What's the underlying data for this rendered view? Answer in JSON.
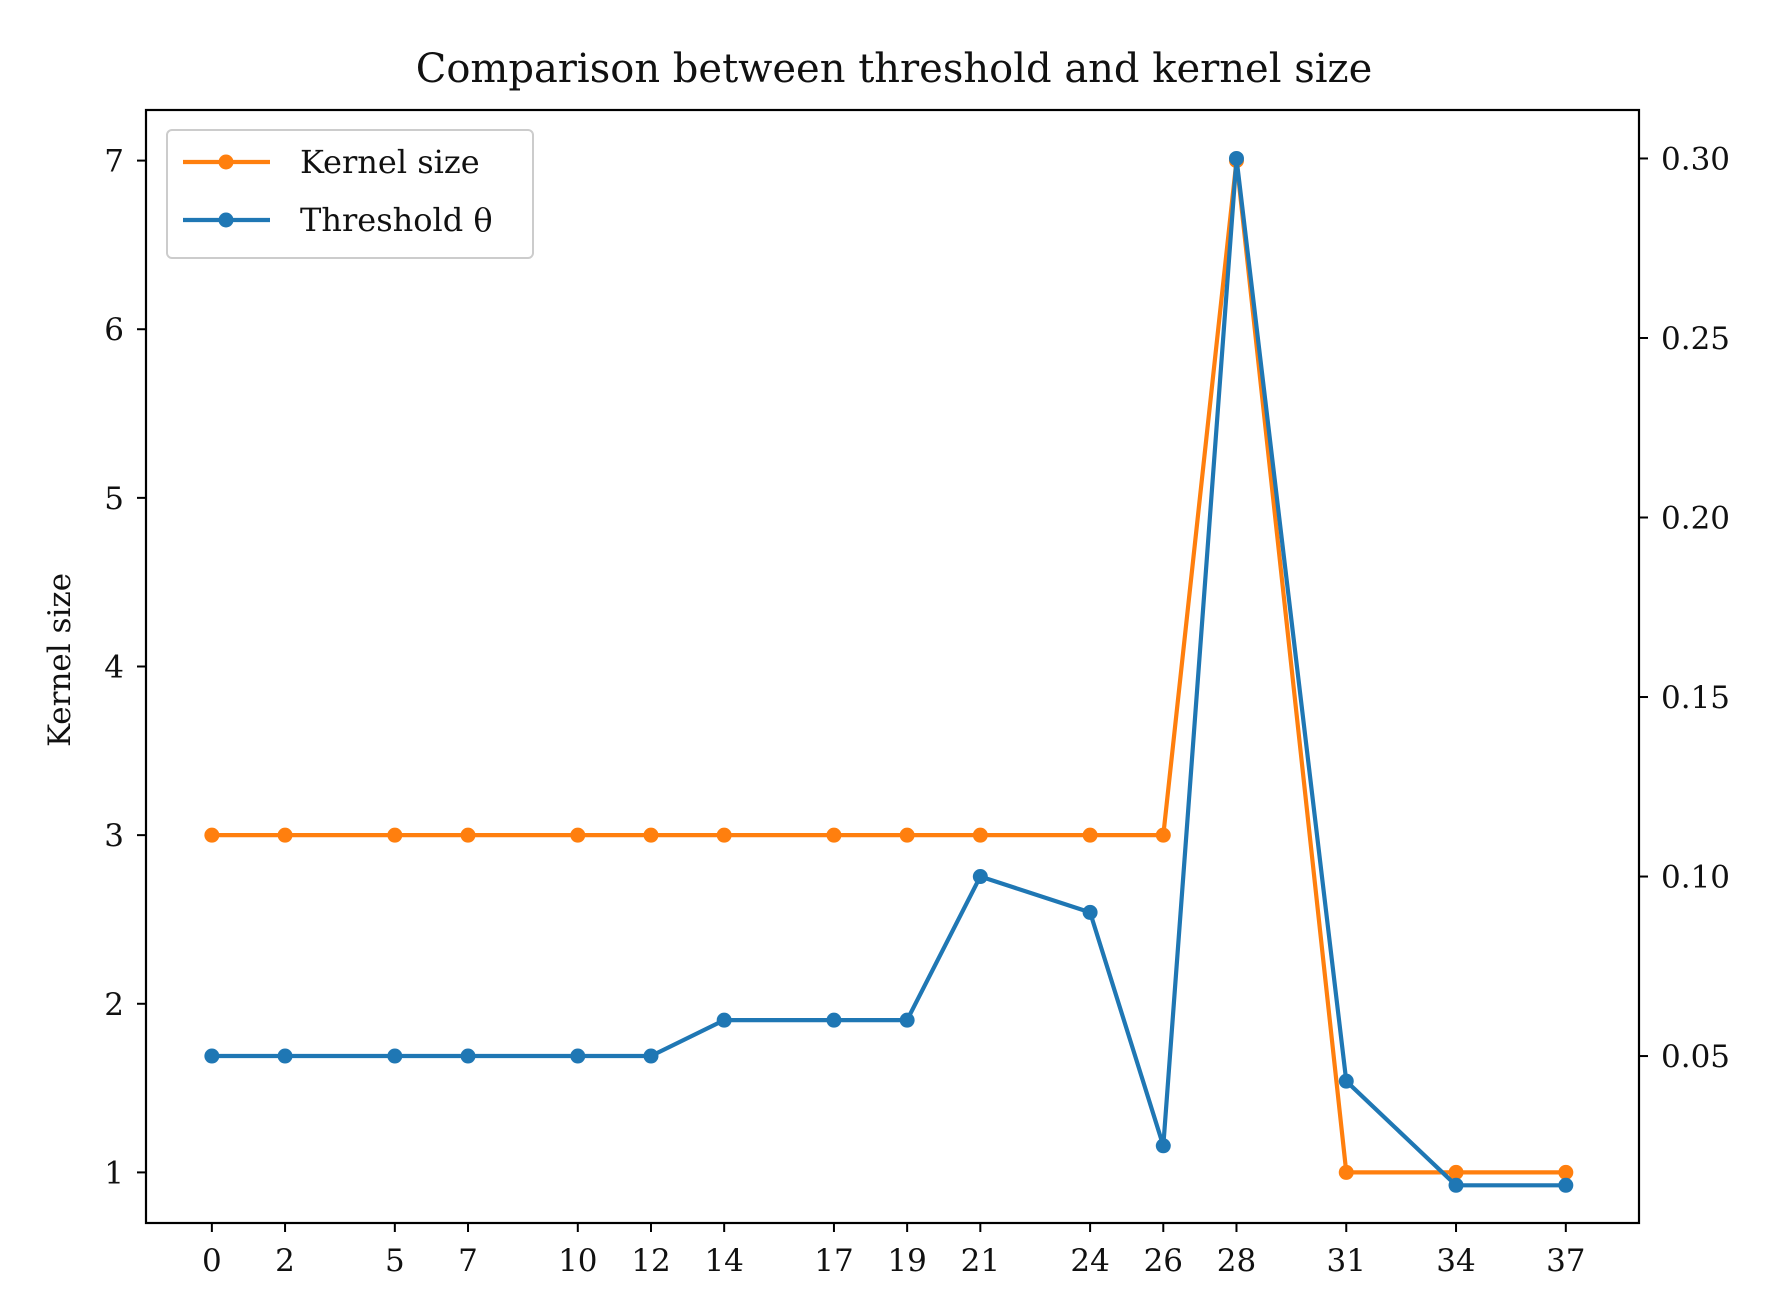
{
  "chart_data": {
    "type": "line",
    "title": "Comparison between threshold and kernel size",
    "xlabel": "",
    "ylabel": "Kernel size",
    "ylabel_right": "",
    "x": [
      0,
      2,
      5,
      7,
      10,
      12,
      14,
      17,
      19,
      21,
      24,
      26,
      28,
      31,
      34,
      37
    ],
    "x_ticks": [
      0,
      2,
      5,
      7,
      10,
      12,
      14,
      17,
      19,
      21,
      24,
      26,
      28,
      31,
      34,
      37
    ],
    "xlim": [
      -1.8,
      39
    ],
    "ylim": [
      0.7,
      7.3
    ],
    "y_ticks": [
      1,
      2,
      3,
      4,
      5,
      6,
      7
    ],
    "ylim_right": [
      0.0035,
      0.3135
    ],
    "y_ticks_right": [
      "0.05",
      "0.10",
      "0.15",
      "0.20",
      "0.25",
      "0.30"
    ],
    "grid": false,
    "legend_position": "top-left",
    "series": [
      {
        "name": "Kernel size",
        "axis": "left",
        "color": "#ff7f0e",
        "values": [
          3,
          3,
          3,
          3,
          3,
          3,
          3,
          3,
          3,
          3,
          3,
          3,
          7,
          1,
          1,
          1
        ]
      },
      {
        "name": "Threshold θ",
        "axis": "right",
        "color": "#1f77b4",
        "values": [
          0.05,
          0.05,
          0.05,
          0.05,
          0.05,
          0.05,
          0.06,
          0.06,
          0.06,
          0.1,
          0.09,
          0.025,
          0.3,
          0.043,
          0.014,
          0.014
        ]
      }
    ]
  }
}
